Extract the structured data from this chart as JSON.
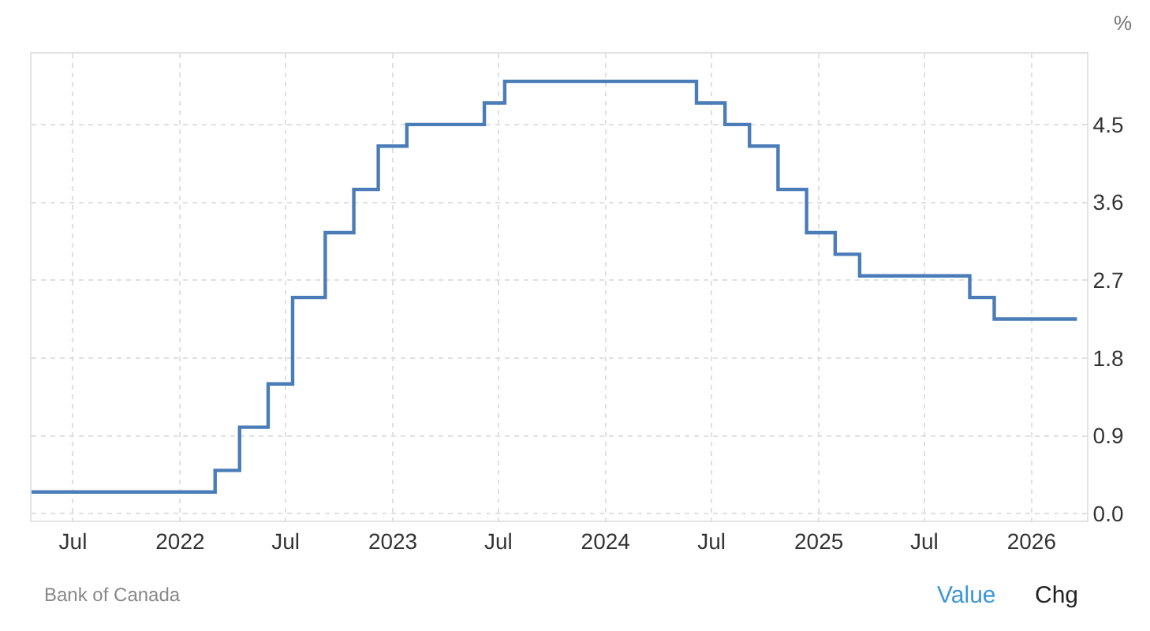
{
  "chart_data": {
    "type": "step",
    "ylabel": "%",
    "annotations": [
      "Bank of Canada",
      "Value",
      "Chg"
    ],
    "x": [
      "2021-04-21",
      "2022-03-02",
      "2022-04-13",
      "2022-06-01",
      "2022-07-13",
      "2022-09-07",
      "2022-10-26",
      "2022-12-07",
      "2023-01-25",
      "2023-06-07",
      "2023-07-12",
      "2024-06-05",
      "2024-07-24",
      "2024-09-04",
      "2024-10-23",
      "2024-12-11",
      "2025-01-29",
      "2025-03-12",
      "2025-09-17",
      "2025-10-29",
      "2026-03-20"
    ],
    "series": [
      {
        "color": "#4a7cb8",
        "values": [
          0.25,
          0.5,
          1.0,
          1.5,
          2.5,
          3.25,
          3.75,
          4.25,
          4.5,
          4.75,
          5.0,
          4.75,
          4.5,
          4.25,
          3.75,
          3.25,
          3.0,
          2.75,
          2.5,
          2.25,
          2.25
        ]
      }
    ],
    "xlim": [
      "2021-04-21",
      "2026-04-06"
    ],
    "xticks": [
      {
        "value": "2021-07",
        "label": "Jul"
      },
      "2022",
      {
        "value": "2022-07",
        "label": "Jul"
      },
      "2023",
      {
        "value": "2023-07",
        "label": "Jul"
      },
      "2024",
      {
        "value": "2024-07",
        "label": "Jul"
      },
      "2025",
      {
        "value": "2025-07",
        "label": "Jul"
      },
      "2026"
    ],
    "ylim": [
      -0.08,
      5.32
    ],
    "yticks": [
      {
        "value": 0,
        "label": "0.0"
      },
      0.9,
      1.8,
      2.7,
      3.6,
      4.5
    ],
    "grid": true,
    "line_style": "solid"
  }
}
